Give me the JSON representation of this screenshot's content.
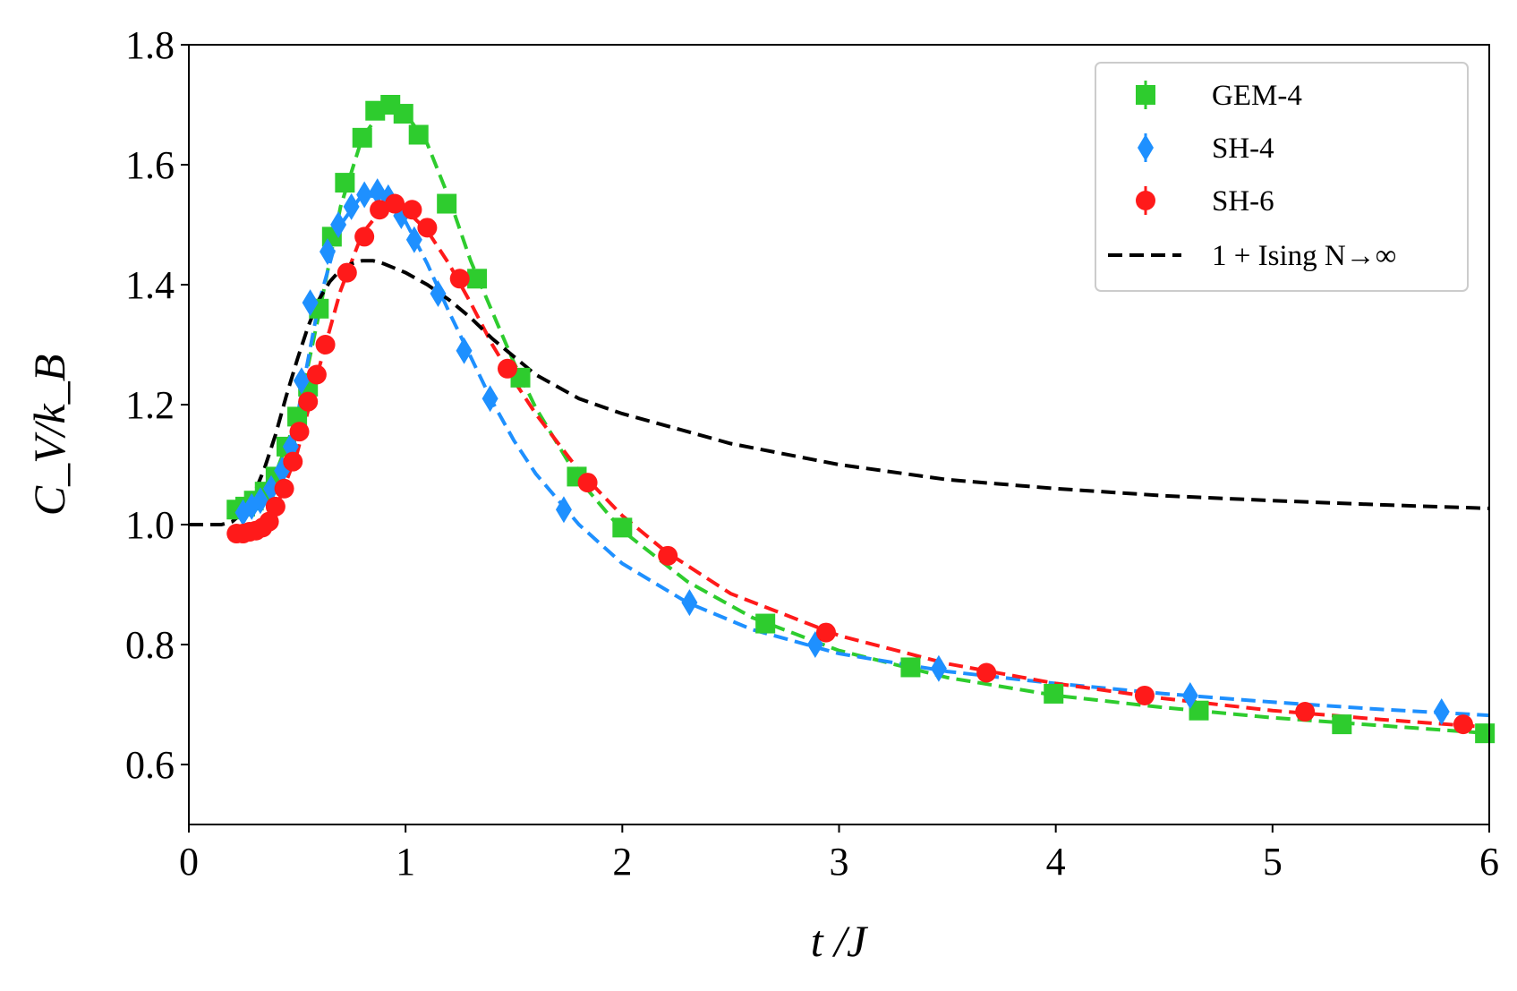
{
  "chart_data": {
    "type": "scatter",
    "title": "",
    "xlabel": "t /J",
    "ylabel": "C_V/k_B",
    "xlim": [
      0,
      6
    ],
    "ylim": [
      0.5,
      1.8
    ],
    "xticks": [
      0,
      1,
      2,
      3,
      4,
      5,
      6
    ],
    "xtick_labels": [
      "0",
      "1",
      "2",
      "3",
      "4",
      "5",
      "6"
    ],
    "yticks": [
      0.6,
      0.8,
      1.0,
      1.2,
      1.4,
      1.6,
      1.8
    ],
    "ytick_labels": [
      "0.6",
      "0.8",
      "1.0",
      "1.2",
      "1.4",
      "1.6",
      "1.8"
    ],
    "grid": false,
    "legend_position": "top-right",
    "series": [
      {
        "name": "GEM-4",
        "color": "#2ecc2e",
        "marker": "square",
        "points": [
          [
            0.22,
            1.025
          ],
          [
            0.26,
            1.03
          ],
          [
            0.3,
            1.04
          ],
          [
            0.35,
            1.055
          ],
          [
            0.4,
            1.08
          ],
          [
            0.45,
            1.13
          ],
          [
            0.5,
            1.18
          ],
          [
            0.55,
            1.23
          ],
          [
            0.6,
            1.36
          ],
          [
            0.66,
            1.48
          ],
          [
            0.72,
            1.57
          ],
          [
            0.8,
            1.645
          ],
          [
            0.86,
            1.69
          ],
          [
            0.93,
            1.7
          ],
          [
            0.99,
            1.685
          ],
          [
            1.06,
            1.65
          ],
          [
            1.19,
            1.535
          ],
          [
            1.33,
            1.41
          ],
          [
            1.53,
            1.245
          ],
          [
            1.79,
            1.08
          ],
          [
            2.0,
            0.995
          ],
          [
            2.66,
            0.835
          ],
          [
            3.33,
            0.762
          ],
          [
            3.99,
            0.718
          ],
          [
            4.66,
            0.69
          ],
          [
            5.32,
            0.667
          ],
          [
            5.98,
            0.652
          ]
        ],
        "fit_curve": [
          [
            0.2,
            1.02
          ],
          [
            0.3,
            1.04
          ],
          [
            0.4,
            1.085
          ],
          [
            0.5,
            1.18
          ],
          [
            0.6,
            1.35
          ],
          [
            0.7,
            1.53
          ],
          [
            0.8,
            1.645
          ],
          [
            0.9,
            1.695
          ],
          [
            1.0,
            1.685
          ],
          [
            1.1,
            1.635
          ],
          [
            1.2,
            1.545
          ],
          [
            1.3,
            1.44
          ],
          [
            1.4,
            1.355
          ],
          [
            1.5,
            1.27
          ],
          [
            1.6,
            1.195
          ],
          [
            1.8,
            1.075
          ],
          [
            2.0,
            0.99
          ],
          [
            2.3,
            0.905
          ],
          [
            2.6,
            0.845
          ],
          [
            3.0,
            0.79
          ],
          [
            3.5,
            0.745
          ],
          [
            4.0,
            0.715
          ],
          [
            4.5,
            0.695
          ],
          [
            5.0,
            0.678
          ],
          [
            5.5,
            0.665
          ],
          [
            6.0,
            0.652
          ]
        ]
      },
      {
        "name": "SH-4",
        "color": "#1e90ff",
        "marker": "diamond",
        "points": [
          [
            0.25,
            1.02
          ],
          [
            0.29,
            1.03
          ],
          [
            0.33,
            1.04
          ],
          [
            0.38,
            1.06
          ],
          [
            0.43,
            1.09
          ],
          [
            0.47,
            1.13
          ],
          [
            0.52,
            1.24
          ],
          [
            0.56,
            1.37
          ],
          [
            0.64,
            1.455
          ],
          [
            0.69,
            1.5
          ],
          [
            0.75,
            1.53
          ],
          [
            0.81,
            1.55
          ],
          [
            0.87,
            1.555
          ],
          [
            0.92,
            1.545
          ],
          [
            0.98,
            1.515
          ],
          [
            1.04,
            1.475
          ],
          [
            1.15,
            1.385
          ],
          [
            1.27,
            1.29
          ],
          [
            1.39,
            1.21
          ],
          [
            1.73,
            1.025
          ],
          [
            2.31,
            0.87
          ],
          [
            2.89,
            0.8
          ],
          [
            3.46,
            0.76
          ],
          [
            4.62,
            0.715
          ],
          [
            5.78,
            0.688
          ]
        ],
        "fit_curve": [
          [
            0.2,
            1.02
          ],
          [
            0.3,
            1.035
          ],
          [
            0.4,
            1.075
          ],
          [
            0.5,
            1.18
          ],
          [
            0.6,
            1.37
          ],
          [
            0.7,
            1.5
          ],
          [
            0.8,
            1.55
          ],
          [
            0.9,
            1.545
          ],
          [
            1.0,
            1.505
          ],
          [
            1.1,
            1.435
          ],
          [
            1.2,
            1.355
          ],
          [
            1.3,
            1.28
          ],
          [
            1.4,
            1.205
          ],
          [
            1.5,
            1.14
          ],
          [
            1.6,
            1.085
          ],
          [
            1.8,
            1.0
          ],
          [
            2.0,
            0.935
          ],
          [
            2.3,
            0.87
          ],
          [
            2.6,
            0.825
          ],
          [
            3.0,
            0.785
          ],
          [
            3.5,
            0.755
          ],
          [
            4.0,
            0.735
          ],
          [
            4.5,
            0.718
          ],
          [
            5.0,
            0.704
          ],
          [
            5.5,
            0.692
          ],
          [
            6.0,
            0.682
          ]
        ]
      },
      {
        "name": "SH-6",
        "color": "#ff1a1a",
        "marker": "circle",
        "points": [
          [
            0.22,
            0.985
          ],
          [
            0.25,
            0.985
          ],
          [
            0.28,
            0.988
          ],
          [
            0.31,
            0.99
          ],
          [
            0.34,
            0.995
          ],
          [
            0.37,
            1.005
          ],
          [
            0.4,
            1.03
          ],
          [
            0.44,
            1.06
          ],
          [
            0.48,
            1.105
          ],
          [
            0.51,
            1.155
          ],
          [
            0.55,
            1.205
          ],
          [
            0.59,
            1.25
          ],
          [
            0.63,
            1.3
          ],
          [
            0.73,
            1.42
          ],
          [
            0.81,
            1.48
          ],
          [
            0.88,
            1.525
          ],
          [
            0.95,
            1.535
          ],
          [
            1.03,
            1.525
          ],
          [
            1.1,
            1.495
          ],
          [
            1.25,
            1.41
          ],
          [
            1.47,
            1.26
          ],
          [
            1.84,
            1.07
          ],
          [
            2.21,
            0.948
          ],
          [
            2.94,
            0.82
          ],
          [
            3.68,
            0.753
          ],
          [
            4.41,
            0.715
          ],
          [
            5.15,
            0.688
          ],
          [
            5.88,
            0.667
          ]
        ],
        "fit_curve": [
          [
            0.2,
            0.985
          ],
          [
            0.3,
            0.99
          ],
          [
            0.4,
            1.025
          ],
          [
            0.5,
            1.12
          ],
          [
            0.6,
            1.26
          ],
          [
            0.7,
            1.39
          ],
          [
            0.8,
            1.485
          ],
          [
            0.9,
            1.53
          ],
          [
            1.0,
            1.525
          ],
          [
            1.1,
            1.49
          ],
          [
            1.2,
            1.435
          ],
          [
            1.3,
            1.37
          ],
          [
            1.4,
            1.3
          ],
          [
            1.5,
            1.24
          ],
          [
            1.6,
            1.185
          ],
          [
            1.8,
            1.09
          ],
          [
            2.0,
            1.015
          ],
          [
            2.2,
            0.955
          ],
          [
            2.5,
            0.885
          ],
          [
            3.0,
            0.815
          ],
          [
            3.5,
            0.768
          ],
          [
            4.0,
            0.735
          ],
          [
            4.5,
            0.71
          ],
          [
            5.0,
            0.69
          ],
          [
            5.5,
            0.675
          ],
          [
            6.0,
            0.662
          ]
        ]
      },
      {
        "name": "1 + Ising N→∞",
        "color": "#000000",
        "marker": "none",
        "linestyle": "dashed",
        "fit_curve": [
          [
            0.0,
            1.0
          ],
          [
            0.15,
            1.0
          ],
          [
            0.2,
            1.005
          ],
          [
            0.25,
            1.02
          ],
          [
            0.3,
            1.05
          ],
          [
            0.35,
            1.095
          ],
          [
            0.4,
            1.15
          ],
          [
            0.45,
            1.215
          ],
          [
            0.5,
            1.275
          ],
          [
            0.55,
            1.33
          ],
          [
            0.6,
            1.375
          ],
          [
            0.65,
            1.405
          ],
          [
            0.7,
            1.425
          ],
          [
            0.75,
            1.435
          ],
          [
            0.8,
            1.44
          ],
          [
            0.85,
            1.44
          ],
          [
            0.9,
            1.435
          ],
          [
            1.0,
            1.42
          ],
          [
            1.1,
            1.4
          ],
          [
            1.2,
            1.375
          ],
          [
            1.3,
            1.345
          ],
          [
            1.4,
            1.31
          ],
          [
            1.5,
            1.28
          ],
          [
            1.6,
            1.25
          ],
          [
            1.8,
            1.21
          ],
          [
            2.0,
            1.185
          ],
          [
            2.2,
            1.165
          ],
          [
            2.5,
            1.135
          ],
          [
            3.0,
            1.1
          ],
          [
            3.5,
            1.075
          ],
          [
            4.0,
            1.06
          ],
          [
            4.5,
            1.048
          ],
          [
            5.0,
            1.04
          ],
          [
            5.5,
            1.033
          ],
          [
            6.0,
            1.027
          ]
        ]
      }
    ]
  },
  "legend": {
    "items": [
      {
        "label": "GEM-4",
        "color": "#2ecc2e",
        "marker": "square"
      },
      {
        "label": "SH-4",
        "color": "#1e90ff",
        "marker": "diamond"
      },
      {
        "label": "SH-6",
        "color": "#ff1a1a",
        "marker": "circle"
      },
      {
        "label": "1 + Ising N→∞",
        "color": "#000000",
        "marker": "dashed-line"
      }
    ]
  }
}
